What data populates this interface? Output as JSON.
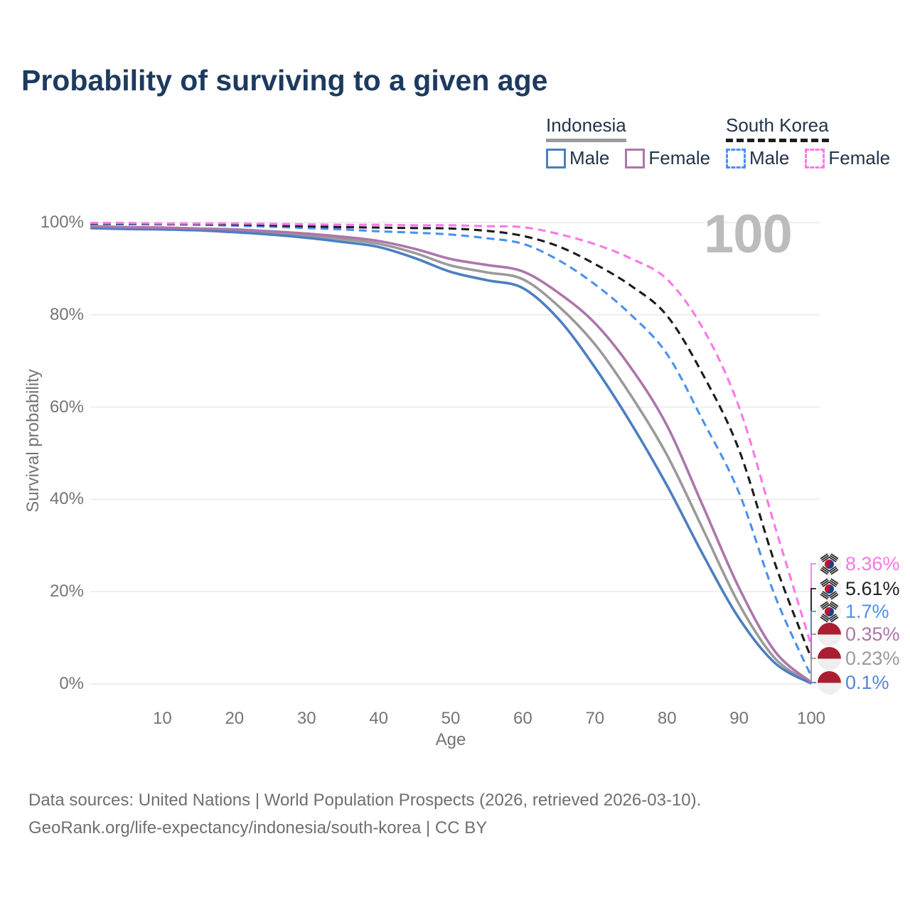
{
  "title": "Probability of surviving to a given age",
  "watermark_age_label": "100",
  "legend": {
    "groups": [
      {
        "label": "Indonesia",
        "line_style": "solid",
        "underline_color": "#9a9a9a",
        "items": [
          {
            "label": "Male",
            "color": "#4d7ec0",
            "dashed": false
          },
          {
            "label": "Female",
            "color": "#ad76ac",
            "dashed": false
          }
        ]
      },
      {
        "label": "South Korea",
        "line_style": "dashed",
        "underline_color": "#1c1c1c",
        "items": [
          {
            "label": "Male",
            "color": "#4a90f0",
            "dashed": true
          },
          {
            "label": "Female",
            "color": "#fa78e8",
            "dashed": true
          }
        ]
      }
    ]
  },
  "chart_data": {
    "type": "line",
    "title": "Probability of surviving to a given age",
    "xlabel": "Age",
    "ylabel": "Survival probability",
    "xlim": [
      0,
      100
    ],
    "ylim": [
      0,
      100
    ],
    "grid": true,
    "legend_position": "top-right",
    "x_ticks": [
      10,
      20,
      30,
      40,
      50,
      60,
      70,
      80,
      90,
      100
    ],
    "y_ticks": [
      {
        "label": "100%",
        "value": 100
      },
      {
        "label": "80%",
        "value": 80
      },
      {
        "label": "60%",
        "value": 60
      },
      {
        "label": "40%",
        "value": 40
      },
      {
        "label": "20%",
        "value": 20
      },
      {
        "label": "0%",
        "value": 0
      }
    ],
    "x": [
      0,
      5,
      10,
      15,
      20,
      25,
      30,
      35,
      40,
      45,
      50,
      55,
      60,
      65,
      70,
      75,
      80,
      85,
      90,
      95,
      100
    ],
    "series": [
      {
        "name": "Indonesia (both sexes)",
        "country": "Indonesia",
        "color": "#9a9a9a",
        "dashed": false,
        "values": [
          99.0,
          98.8,
          98.7,
          98.5,
          98.2,
          97.8,
          97.2,
          96.4,
          95.4,
          93.4,
          90.7,
          89.2,
          87.7,
          81.8,
          73.6,
          62.5,
          49.6,
          33.5,
          17.3,
          5.5,
          0.23
        ],
        "end_label": "0.23%",
        "end_label_color": "#9a9a9a"
      },
      {
        "name": "Indonesia Male",
        "country": "Indonesia",
        "color": "#4d7ec0",
        "dashed": false,
        "values": [
          98.8,
          98.6,
          98.5,
          98.3,
          97.9,
          97.4,
          96.7,
          95.8,
          94.7,
          92.3,
          89.3,
          87.5,
          85.8,
          79.0,
          68.6,
          56.5,
          43.0,
          28.0,
          14.2,
          4.5,
          0.1
        ],
        "end_label": "0.1%",
        "end_label_color": "#5585d6"
      },
      {
        "name": "Indonesia Female",
        "country": "Indonesia",
        "color": "#ad76ac",
        "dashed": false,
        "values": [
          99.2,
          99.0,
          98.9,
          98.7,
          98.5,
          98.1,
          97.6,
          96.9,
          96.0,
          94.3,
          92.1,
          90.8,
          89.4,
          84.7,
          78.2,
          68.5,
          56.0,
          38.5,
          20.8,
          7.0,
          0.35
        ],
        "end_label": "0.35%",
        "end_label_color": "#ad76ac"
      },
      {
        "name": "South Korea Male",
        "country": "South Korea",
        "color": "#4a90f0",
        "dashed": true,
        "values": [
          99.7,
          99.6,
          99.6,
          99.5,
          99.3,
          99.1,
          98.8,
          98.5,
          98.1,
          97.8,
          97.4,
          96.6,
          95.4,
          91.8,
          86.6,
          80.0,
          71.5,
          57.0,
          41.4,
          19.0,
          1.7
        ],
        "end_label": "1.7%",
        "end_label_color": "#4a90f0"
      },
      {
        "name": "South Korea (both sexes)",
        "country": "South Korea",
        "color": "#1c1c1c",
        "dashed": true,
        "values": [
          99.8,
          99.8,
          99.7,
          99.7,
          99.6,
          99.4,
          99.2,
          99.0,
          98.9,
          98.8,
          98.7,
          98.2,
          97.1,
          94.8,
          91.0,
          86.3,
          79.8,
          67.0,
          50.7,
          26.0,
          5.61
        ],
        "end_label": "5.61%",
        "end_label_color": "#222222"
      },
      {
        "name": "South Korea Female",
        "country": "South Korea",
        "color": "#fa78e8",
        "dashed": true,
        "values": [
          99.9,
          99.9,
          99.8,
          99.8,
          99.8,
          99.7,
          99.6,
          99.5,
          99.5,
          99.4,
          99.4,
          99.2,
          99.0,
          97.5,
          95.3,
          92.2,
          87.7,
          77.0,
          60.0,
          34.0,
          8.36
        ],
        "end_label": "8.36%",
        "end_label_color": "#fa78e8"
      }
    ]
  },
  "footer": {
    "line1": "Data sources: United Nations | World Population Prospects (2026, retrieved 2026-03-10).",
    "line2": "GeoRank.org/life-expectancy/indonesia/south-korea | CC BY"
  }
}
